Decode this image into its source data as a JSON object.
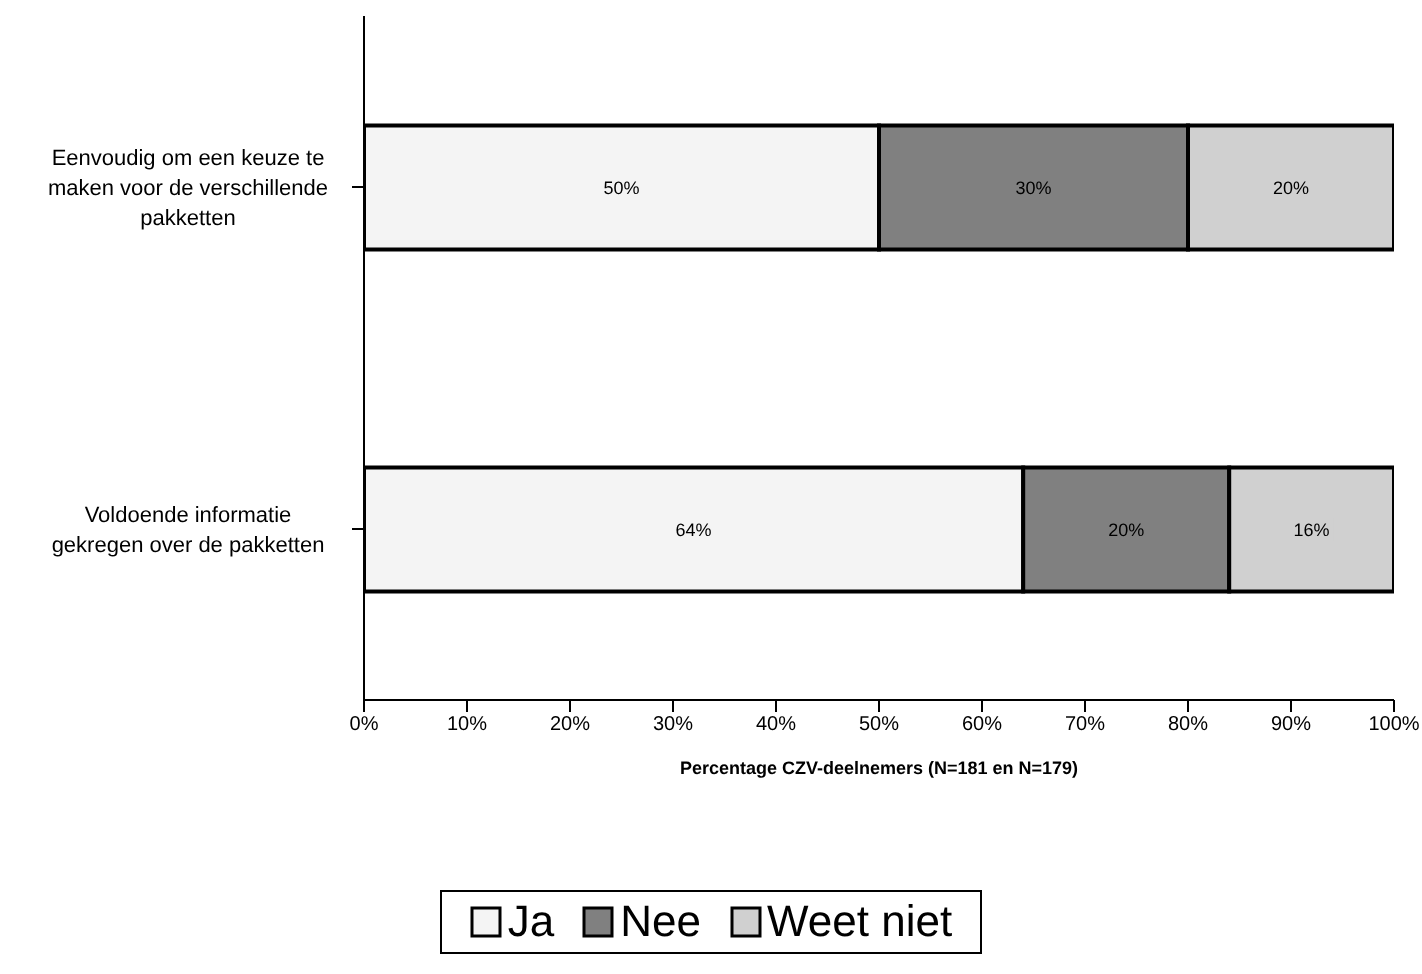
{
  "chart_data": {
    "type": "bar",
    "orientation": "horizontal",
    "stacked": true,
    "xlabel": "Percentage CZV-deelnemers (N=181 en N=179)",
    "categories": [
      "Eenvoudig om een keuze te maken voor de verschillende pakketten",
      "Voldoende informatie gekregen over de pakketten"
    ],
    "series": [
      {
        "name": "Ja",
        "color": "#f4f4f4",
        "values": [
          50,
          64
        ],
        "value_labels": [
          "50%",
          "64%"
        ]
      },
      {
        "name": "Nee",
        "color": "#808080",
        "values": [
          30,
          20
        ],
        "value_labels": [
          "30%",
          "20%"
        ]
      },
      {
        "name": "Weet niet",
        "color": "#d0d0d0",
        "values": [
          20,
          16
        ],
        "value_labels": [
          "20%",
          "16%"
        ]
      }
    ],
    "xlim": [
      0,
      100
    ],
    "xticks": [
      {
        "value": 0,
        "label": "0%"
      },
      {
        "value": 10,
        "label": "10%"
      },
      {
        "value": 20,
        "label": "20%"
      },
      {
        "value": 30,
        "label": "30%"
      },
      {
        "value": 40,
        "label": "40%"
      },
      {
        "value": 50,
        "label": "50%"
      },
      {
        "value": 60,
        "label": "60%"
      },
      {
        "value": 70,
        "label": "70%"
      },
      {
        "value": 80,
        "label": "80%"
      },
      {
        "value": 90,
        "label": "90%"
      },
      {
        "value": 100,
        "label": "100%"
      }
    ],
    "grid": false,
    "legend": "bottom"
  }
}
